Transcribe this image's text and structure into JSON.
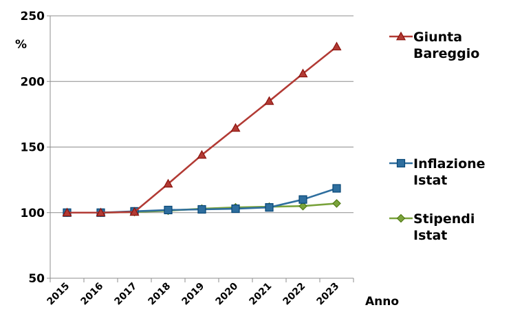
{
  "chart_data": {
    "type": "line",
    "title": "",
    "xlabel": "Anno",
    "ylabel": "%",
    "ylim": [
      50,
      250
    ],
    "yticks": [
      "50",
      "100",
      "150",
      "200",
      "250"
    ],
    "categories": [
      "2015",
      "2016",
      "2017",
      "2018",
      "2019",
      "2020",
      "2021",
      "2022",
      "2023"
    ],
    "grid": "horizontal",
    "legend": "right",
    "series": [
      {
        "name_lines": [
          "Giunta",
          "Bareggio"
        ],
        "color": "#b23a34",
        "marker": "triangle",
        "values": [
          100,
          100,
          100.5,
          122,
          144,
          164.5,
          185,
          206,
          226.5
        ]
      },
      {
        "name_lines": [
          "Inflazione",
          "Istat"
        ],
        "color": "#2e6e9e",
        "marker": "square",
        "values": [
          100,
          100,
          101,
          102,
          102.5,
          103,
          104,
          110,
          118.5
        ]
      },
      {
        "name_lines": [
          "Stipendi",
          "Istat"
        ],
        "color": "#7aa33c",
        "marker": "diamond",
        "values": [
          100,
          100,
          100.5,
          101.5,
          103,
          104,
          104.5,
          105,
          107
        ]
      }
    ]
  }
}
